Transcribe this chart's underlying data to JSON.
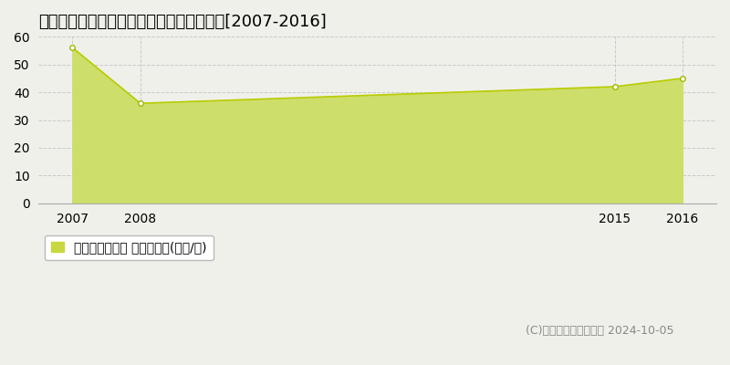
{
  "title": "南埼玉郡宮代町宮代　マンション価格推移[2007-2016]",
  "x": [
    2007,
    2008,
    2015,
    2016
  ],
  "y": [
    56,
    36,
    42,
    45
  ],
  "line_color": "#b8cc00",
  "fill_color": "#cede6a",
  "marker_facecolor": "#ffffff",
  "marker_edgecolor": "#a0b800",
  "ylim": [
    0,
    60
  ],
  "yticks": [
    0,
    10,
    20,
    30,
    40,
    50,
    60
  ],
  "xticks": [
    2007,
    2008,
    2015,
    2016
  ],
  "grid_color": "#c8c8c8",
  "grid_linestyle": "--",
  "bg_color": "#f0f0eb",
  "legend_label": "マンション価格 平均坪単価(万円/坪)",
  "legend_color": "#c8d840",
  "copyright_text": "(C)土地価格ドットコム 2024-10-05",
  "title_fontsize": 13,
  "tick_fontsize": 10,
  "legend_fontsize": 10,
  "copyright_fontsize": 9
}
